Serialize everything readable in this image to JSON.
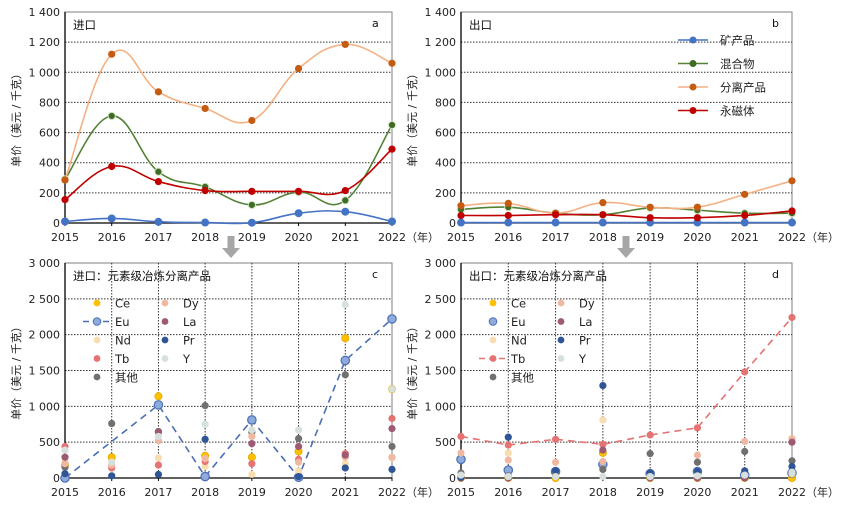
{
  "figure": {
    "arrow_icon": "down-arrow-icon",
    "year_unit": "（年）"
  },
  "chart_data": [
    {
      "id": "a",
      "type": "line",
      "panel_label": "a",
      "title": "进口",
      "ylabel": "单价（美元 / 千克）",
      "xlabel": "（年）",
      "x": [
        2015,
        2016,
        2017,
        2018,
        2019,
        2020,
        2021,
        2022
      ],
      "xticks": [
        "2015",
        "2016",
        "2017",
        "2018",
        "2019",
        "2020",
        "2021",
        "2022"
      ],
      "ylim": [
        0,
        1400
      ],
      "yticks": [
        "0",
        "200",
        "400",
        "600",
        "800",
        "1 000",
        "1 200",
        "1 400"
      ],
      "ytick_values": [
        0,
        200,
        400,
        600,
        800,
        1000,
        1200,
        1400
      ],
      "grid": "horizontal-dotted",
      "smooth": true,
      "series": [
        {
          "name": "矿产品",
          "color": "#4472c4",
          "marker": "#4472c4",
          "values": [
            10,
            30,
            8,
            3,
            2,
            65,
            75,
            10
          ]
        },
        {
          "name": "混合物",
          "color": "#548235",
          "marker": "#3e6b26",
          "values": [
            290,
            710,
            340,
            240,
            120,
            205,
            150,
            650
          ]
        },
        {
          "name": "分离产品",
          "color": "#f4b183",
          "marker": "#c55a11",
          "values": [
            285,
            1120,
            870,
            760,
            680,
            1025,
            1185,
            1060
          ]
        },
        {
          "name": "永磁体",
          "color": "#c00000",
          "marker": "#c00000",
          "values": [
            155,
            375,
            275,
            215,
            210,
            210,
            215,
            490
          ]
        }
      ]
    },
    {
      "id": "b",
      "type": "line",
      "panel_label": "b",
      "title": "出口",
      "ylabel": "单价（美元 / 千克）",
      "xlabel": "（年）",
      "x": [
        2015,
        2016,
        2017,
        2018,
        2019,
        2020,
        2021,
        2022
      ],
      "xticks": [
        "2015",
        "2016",
        "2017",
        "2018",
        "2019",
        "2020",
        "2021",
        "2022"
      ],
      "ylim": [
        0,
        1400
      ],
      "yticks": [
        "0",
        "200",
        "400",
        "600",
        "800",
        "1 000",
        "1 200",
        "1 400"
      ],
      "ytick_values": [
        0,
        200,
        400,
        600,
        800,
        1000,
        1200,
        1400
      ],
      "grid": "horizontal-dotted",
      "smooth": true,
      "legend_position": "top-right",
      "series": [
        {
          "name": "矿产品",
          "color": "#4472c4",
          "marker": "#4472c4",
          "values": [
            3,
            3,
            3,
            3,
            3,
            3,
            3,
            3
          ]
        },
        {
          "name": "混合物",
          "color": "#548235",
          "marker": "#3e6b26",
          "values": [
            90,
            105,
            65,
            55,
            100,
            85,
            65,
            65
          ]
        },
        {
          "name": "分离产品",
          "color": "#f4b183",
          "marker": "#c55a11",
          "values": [
            115,
            130,
            65,
            135,
            105,
            105,
            190,
            280
          ]
        },
        {
          "name": "永磁体",
          "color": "#c00000",
          "marker": "#c00000",
          "values": [
            50,
            50,
            55,
            55,
            35,
            35,
            50,
            80
          ]
        }
      ]
    },
    {
      "id": "c",
      "type": "scatter",
      "panel_label": "c",
      "title": "进口：元素级冶炼分离产品",
      "ylabel": "单价（美元 / 千克）",
      "xlabel": "（年）",
      "x": [
        2015,
        2016,
        2017,
        2018,
        2019,
        2020,
        2021,
        2022
      ],
      "xticks": [
        "2015",
        "2016",
        "2017",
        "2018",
        "2019",
        "2020",
        "2021",
        "2022"
      ],
      "ylim": [
        0,
        3000
      ],
      "yticks": [
        "0",
        "500",
        "1 000",
        "1 500",
        "2 000",
        "2 500",
        "3 000"
      ],
      "ytick_values": [
        0,
        500,
        1000,
        1500,
        2000,
        2500,
        3000
      ],
      "grid": "both-dotted",
      "highlight_series": "Eu",
      "series": [
        {
          "name": "Ce",
          "color": "#ffc000",
          "values": [
            180,
            290,
            1140,
            310,
            290,
            370,
            1950,
            1240
          ]
        },
        {
          "name": "Eu",
          "color": "#8faadc",
          "line": "dashed",
          "line_color": "#4a6fb3",
          "values": [
            0,
            null,
            1020,
            20,
            810,
            10,
            1640,
            2220
          ]
        },
        {
          "name": "Nd",
          "color": "#f8ddb0",
          "values": [
            230,
            220,
            280,
            160,
            50,
            100,
            200,
            280
          ]
        },
        {
          "name": "Tb",
          "color": "#e57373",
          "values": [
            440,
            140,
            180,
            230,
            200,
            260,
            340,
            830
          ]
        },
        {
          "name": "其他",
          "color": "#707070",
          "values": [
            150,
            760,
            650,
            1010,
            640,
            550,
            1440,
            440
          ]
        },
        {
          "name": "Dy",
          "color": "#f0b8a0",
          "values": [
            200,
            180,
            520,
            270,
            580,
            220,
            290,
            290
          ]
        },
        {
          "name": "La",
          "color": "#9e5a75",
          "values": [
            290,
            null,
            640,
            null,
            480,
            440,
            320,
            690
          ]
        },
        {
          "name": "Pr",
          "color": "#2f5597",
          "values": [
            60,
            30,
            50,
            540,
            null,
            20,
            140,
            120
          ]
        },
        {
          "name": "Y",
          "color": "#d6e0dc",
          "values": [
            390,
            220,
            580,
            750,
            670,
            670,
            2420,
            1240
          ]
        }
      ]
    },
    {
      "id": "d",
      "type": "scatter",
      "panel_label": "d",
      "title": "出口：元素级冶炼分离产品",
      "ylabel": "单价（美元 / 千克）",
      "xlabel": "（年）",
      "x": [
        2015,
        2016,
        2017,
        2018,
        2019,
        2020,
        2021,
        2022
      ],
      "xticks": [
        "2015",
        "2016",
        "2017",
        "2018",
        "2019",
        "2020",
        "2021",
        "2022"
      ],
      "ylim": [
        0,
        3000
      ],
      "yticks": [
        "0",
        "500",
        "1 000",
        "1 500",
        "2 000",
        "2 500",
        "3 000"
      ],
      "ytick_values": [
        0,
        500,
        1000,
        1500,
        2000,
        2500,
        3000
      ],
      "grid": "both-dotted",
      "highlight_series": "Tb",
      "series": [
        {
          "name": "Ce",
          "color": "#ffc000",
          "values": [
            0,
            0,
            0,
            350,
            0,
            0,
            0,
            0
          ]
        },
        {
          "name": "Eu",
          "color": "#8faadc",
          "values": [
            260,
            110,
            90,
            190,
            60,
            90,
            40,
            70
          ]
        },
        {
          "name": "Nd",
          "color": "#f8ddb0",
          "values": [
            0,
            350,
            50,
            810,
            30,
            60,
            40,
            60
          ]
        },
        {
          "name": "Tb",
          "color": "#e57373",
          "line": "dashed",
          "line_color": "#e57373",
          "values": [
            580,
            460,
            540,
            470,
            600,
            700,
            1480,
            2240
          ]
        },
        {
          "name": "其他",
          "color": "#707070",
          "values": [
            70,
            30,
            50,
            120,
            340,
            220,
            370,
            240
          ]
        },
        {
          "name": "Dy",
          "color": "#f0b8a0",
          "values": [
            350,
            250,
            220,
            230,
            40,
            320,
            510,
            550
          ]
        },
        {
          "name": "La",
          "color": "#9e5a75",
          "values": [
            0,
            0,
            20,
            390,
            0,
            0,
            0,
            500
          ]
        },
        {
          "name": "Pr",
          "color": "#2f5597",
          "values": [
            10,
            570,
            100,
            1290,
            70,
            90,
            100,
            160
          ]
        },
        {
          "name": "Y",
          "color": "#d6e0dc",
          "values": [
            40,
            20,
            20,
            20,
            20,
            30,
            40,
            80
          ]
        }
      ]
    }
  ]
}
